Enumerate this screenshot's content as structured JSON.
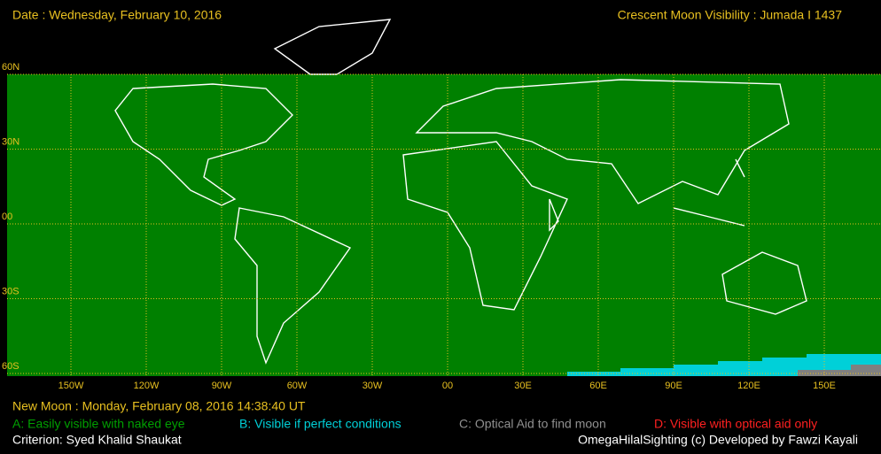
{
  "header": {
    "date": "Date : Wednesday, February 10, 2016",
    "title": "Crescent Moon Visibility : Jumada I  1437"
  },
  "map": {
    "lat_labels": [
      "60N",
      "30N",
      "00",
      "30S",
      "60S"
    ],
    "lon_labels": [
      "150W",
      "120W",
      "90W",
      "60W",
      "30W",
      "00",
      "30E",
      "60E",
      "90E",
      "120E",
      "150E"
    ]
  },
  "footer": {
    "new_moon": "New Moon : Monday, February 08, 2016  14:38:40  UT",
    "legend": [
      "A: Easily visible with naked eye",
      "B: Visible if perfect conditions",
      "C: Optical Aid to find moon",
      "D: Visible with optical aid only"
    ],
    "criterion": "Criterion: Syed Khalid Shaukat",
    "credit": "OmegaHilalSighting  (c)  Developed by Fawzi Kayali"
  }
}
